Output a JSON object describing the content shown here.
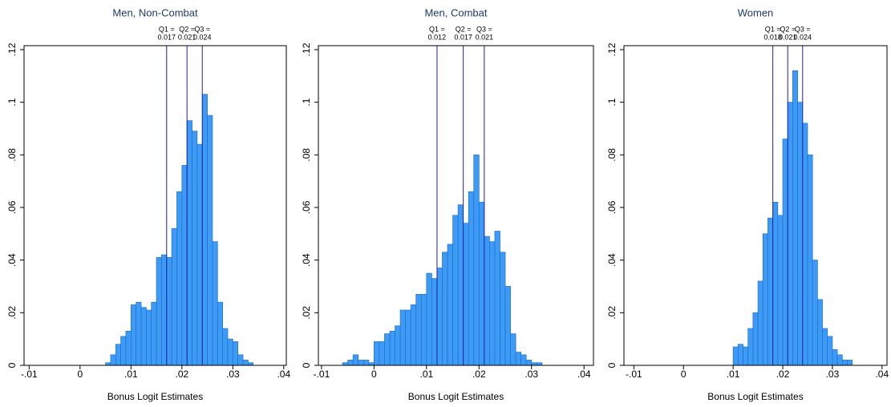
{
  "chart_data": [
    {
      "type": "histogram",
      "title": "Men, Non-Combat",
      "xlabel": "Bonus Logit Estimates",
      "color": "#3d9bf5",
      "edgecolor": "#1e6fd0",
      "line_color": "#1f1fa8",
      "bins": [
        0.005,
        0.006,
        0.007,
        0.008,
        0.009,
        0.01,
        0.011,
        0.012,
        0.013,
        0.014,
        0.015,
        0.016,
        0.017,
        0.018,
        0.019,
        0.02,
        0.021,
        0.022,
        0.023,
        0.024,
        0.025,
        0.026,
        0.027,
        0.028,
        0.029,
        0.03,
        0.031,
        0.032,
        0.033,
        0.034
      ],
      "counts": [
        0.001,
        0.004,
        0.008,
        0.011,
        0.013,
        0.023,
        0.024,
        0.022,
        0.021,
        0.024,
        0.041,
        0.042,
        0.041,
        0.052,
        0.066,
        0.076,
        0.093,
        0.089,
        0.084,
        0.103,
        0.095,
        0.047,
        0.024,
        0.014,
        0.01,
        0.009,
        0.004,
        0.002,
        0.001
      ],
      "quartiles": [
        {
          "name": "Q1 =",
          "value": 0.017
        },
        {
          "name": "Q2 =",
          "value": 0.021
        },
        {
          "name": "Q3 =",
          "value": 0.024
        }
      ],
      "xlim": [
        -0.011,
        0.0405
      ],
      "ylim": [
        0,
        0.1215
      ],
      "xticks": [
        {
          "value": -0.01,
          "label": "-.01"
        },
        0,
        {
          "value": 0.01,
          "label": ".01"
        },
        {
          "value": 0.02,
          "label": ".02"
        },
        {
          "value": 0.03,
          "label": ".03"
        },
        {
          "value": 0.04,
          "label": ".04"
        }
      ],
      "yticks": [
        0,
        {
          "value": 0.02,
          "label": ".02"
        },
        {
          "value": 0.04,
          "label": ".04"
        },
        {
          "value": 0.06,
          "label": ".06"
        },
        {
          "value": 0.08,
          "label": ".08"
        },
        {
          "value": 0.1,
          "label": ".1"
        },
        {
          "value": 0.12,
          "label": ".12"
        }
      ]
    },
    {
      "type": "histogram",
      "title": "Men, Combat",
      "xlabel": "Bonus Logit Estimates",
      "color": "#3d9bf5",
      "edgecolor": "#1e6fd0",
      "line_color": "#1f1fa8",
      "bins": [
        -0.006,
        -0.005,
        -0.004,
        -0.003,
        -0.002,
        -0.001,
        0,
        0.001,
        0.002,
        0.003,
        0.004,
        0.005,
        0.006,
        0.007,
        0.008,
        0.009,
        0.01,
        0.011,
        0.012,
        0.013,
        0.014,
        0.015,
        0.016,
        0.017,
        0.018,
        0.019,
        0.02,
        0.021,
        0.022,
        0.023,
        0.024,
        0.025,
        0.026,
        0.027,
        0.028,
        0.029,
        0.03,
        0.031,
        0.032
      ],
      "counts": [
        0.001,
        0.002,
        0.004,
        0.002,
        0.002,
        0.001,
        0.009,
        0.009,
        0.012,
        0.013,
        0.015,
        0.021,
        0.021,
        0.023,
        0.027,
        0.027,
        0.035,
        0.033,
        0.037,
        0.043,
        0.046,
        0.057,
        0.061,
        0.054,
        0.066,
        0.08,
        0.062,
        0.049,
        0.047,
        0.051,
        0.043,
        0.03,
        0.012,
        0.005,
        0.004,
        0.002,
        0.001,
        0.001
      ],
      "quartiles": [
        {
          "name": "Q1 =",
          "value": 0.012
        },
        {
          "name": "Q2 =",
          "value": 0.017
        },
        {
          "name": "Q3 =",
          "value": 0.021
        }
      ],
      "xlim": [
        -0.0106,
        0.0418
      ],
      "ylim": [
        0,
        0.1215
      ],
      "xticks": [
        {
          "value": -0.01,
          "label": "-.01"
        },
        0,
        {
          "value": 0.01,
          "label": ".01"
        },
        {
          "value": 0.02,
          "label": ".02"
        },
        {
          "value": 0.03,
          "label": ".03"
        },
        {
          "value": 0.04,
          "label": ".04"
        }
      ],
      "yticks": [
        0,
        {
          "value": 0.02,
          "label": ".02"
        },
        {
          "value": 0.04,
          "label": ".04"
        },
        {
          "value": 0.06,
          "label": ".06"
        },
        {
          "value": 0.08,
          "label": ".08"
        },
        {
          "value": 0.1,
          "label": ".1"
        },
        {
          "value": 0.12,
          "label": ".12"
        }
      ]
    },
    {
      "type": "histogram",
      "title": "Women",
      "xlabel": "Bonus Logit Estimates",
      "color": "#3d9bf5",
      "edgecolor": "#1e6fd0",
      "line_color": "#1f1fa8",
      "bins": [
        0.01,
        0.011,
        0.012,
        0.013,
        0.014,
        0.015,
        0.016,
        0.017,
        0.018,
        0.019,
        0.02,
        0.021,
        0.022,
        0.023,
        0.024,
        0.025,
        0.026,
        0.027,
        0.028,
        0.029,
        0.03,
        0.031,
        0.032,
        0.033,
        0.034
      ],
      "counts": [
        0.007,
        0.008,
        0.007,
        0.014,
        0.02,
        0.032,
        0.05,
        0.056,
        0.062,
        0.057,
        0.086,
        0.1,
        0.112,
        0.1,
        0.092,
        0.08,
        0.04,
        0.025,
        0.014,
        0.011,
        0.006,
        0.004,
        0.002,
        0.002
      ],
      "quartiles": [
        {
          "name": "Q1 =",
          "value": 0.018
        },
        {
          "name": "Q2 =",
          "value": 0.021
        },
        {
          "name": "Q3 =",
          "value": 0.024
        }
      ],
      "xlim": [
        -0.012,
        0.041
      ],
      "ylim": [
        0,
        0.1215
      ],
      "xticks": [
        {
          "value": -0.01,
          "label": "-.01"
        },
        0,
        {
          "value": 0.01,
          "label": ".01"
        },
        {
          "value": 0.02,
          "label": ".02"
        },
        {
          "value": 0.03,
          "label": ".03"
        },
        {
          "value": 0.04,
          "label": ".04"
        }
      ],
      "yticks": [
        0,
        {
          "value": 0.02,
          "label": ".02"
        },
        {
          "value": 0.04,
          "label": ".04"
        },
        {
          "value": 0.06,
          "label": ".06"
        },
        {
          "value": 0.08,
          "label": ".08"
        },
        {
          "value": 0.1,
          "label": ".1"
        },
        {
          "value": 0.12,
          "label": ".12"
        }
      ]
    }
  ]
}
